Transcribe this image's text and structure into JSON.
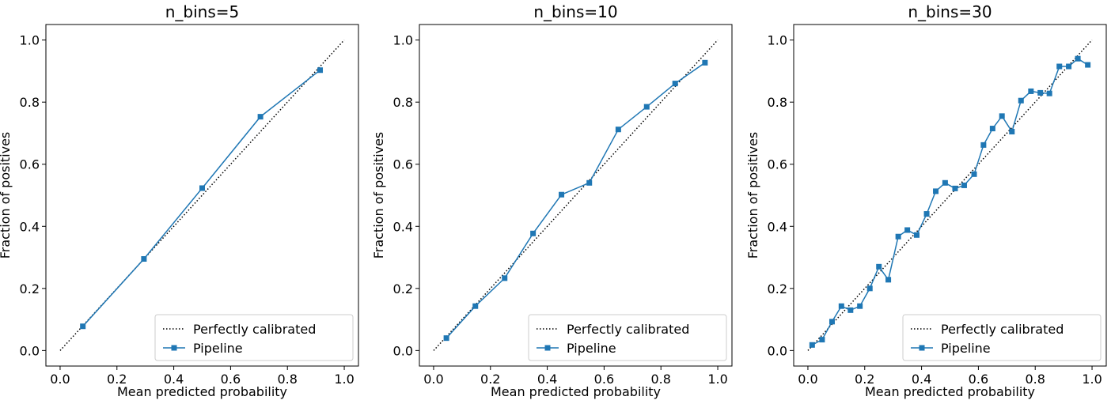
{
  "chart_data": [
    {
      "type": "line",
      "title": "n_bins=5",
      "xlabel": "Mean predicted probability",
      "ylabel": "Fraction of positives",
      "xlim": [
        -0.05,
        1.05
      ],
      "ylim": [
        -0.05,
        1.05
      ],
      "xticks": [
        "0.0",
        "0.2",
        "0.4",
        "0.6",
        "0.8",
        "1.0"
      ],
      "yticks": [
        "0.0",
        "0.2",
        "0.4",
        "0.6",
        "0.8",
        "1.0"
      ],
      "legend_location": "lower-right",
      "series": [
        {
          "name": "Perfectly calibrated",
          "style": "dotted",
          "color": "#000000",
          "x": [
            0,
            1
          ],
          "y": [
            0,
            1
          ]
        },
        {
          "name": "Pipeline",
          "style": "solid-square-markers",
          "color": "#1f77b4",
          "x": [
            0.08,
            0.295,
            0.5,
            0.705,
            0.915
          ],
          "y": [
            0.078,
            0.295,
            0.523,
            0.753,
            0.903
          ]
        }
      ]
    },
    {
      "type": "line",
      "title": "n_bins=10",
      "xlabel": "Mean predicted probability",
      "ylabel": "Fraction of positives",
      "xlim": [
        -0.05,
        1.05
      ],
      "ylim": [
        -0.05,
        1.05
      ],
      "xticks": [
        "0.0",
        "0.2",
        "0.4",
        "0.6",
        "0.8",
        "1.0"
      ],
      "yticks": [
        "0.0",
        "0.2",
        "0.4",
        "0.6",
        "0.8",
        "1.0"
      ],
      "legend_location": "lower-right",
      "series": [
        {
          "name": "Perfectly calibrated",
          "style": "dotted",
          "color": "#000000",
          "x": [
            0,
            1
          ],
          "y": [
            0,
            1
          ]
        },
        {
          "name": "Pipeline",
          "style": "solid-square-markers",
          "color": "#1f77b4",
          "x": [
            0.045,
            0.147,
            0.25,
            0.35,
            0.45,
            0.548,
            0.65,
            0.75,
            0.85,
            0.955
          ],
          "y": [
            0.04,
            0.143,
            0.233,
            0.377,
            0.502,
            0.54,
            0.712,
            0.785,
            0.86,
            0.927
          ]
        }
      ]
    },
    {
      "type": "line",
      "title": "n_bins=30",
      "xlabel": "Mean predicted probability",
      "ylabel": "Fraction of positives",
      "xlim": [
        -0.05,
        1.05
      ],
      "ylim": [
        -0.05,
        1.05
      ],
      "xticks": [
        "0.0",
        "0.2",
        "0.4",
        "0.6",
        "0.8",
        "1.0"
      ],
      "yticks": [
        "0.0",
        "0.2",
        "0.4",
        "0.6",
        "0.8",
        "1.0"
      ],
      "legend_location": "lower-right",
      "series": [
        {
          "name": "Perfectly calibrated",
          "style": "dotted",
          "color": "#000000",
          "x": [
            0,
            1
          ],
          "y": [
            0,
            1
          ]
        },
        {
          "name": "Pipeline",
          "style": "solid-square-markers",
          "color": "#1f77b4",
          "x": [
            0.015,
            0.05,
            0.085,
            0.118,
            0.15,
            0.183,
            0.218,
            0.25,
            0.283,
            0.318,
            0.35,
            0.383,
            0.418,
            0.45,
            0.483,
            0.518,
            0.55,
            0.585,
            0.618,
            0.65,
            0.683,
            0.718,
            0.75,
            0.785,
            0.818,
            0.85,
            0.885,
            0.918,
            0.95,
            0.985
          ],
          "y": [
            0.018,
            0.035,
            0.093,
            0.143,
            0.13,
            0.143,
            0.2,
            0.27,
            0.228,
            0.367,
            0.388,
            0.372,
            0.44,
            0.513,
            0.54,
            0.522,
            0.532,
            0.568,
            0.662,
            0.715,
            0.755,
            0.705,
            0.805,
            0.835,
            0.83,
            0.828,
            0.915,
            0.915,
            0.94,
            0.92
          ]
        }
      ]
    }
  ]
}
